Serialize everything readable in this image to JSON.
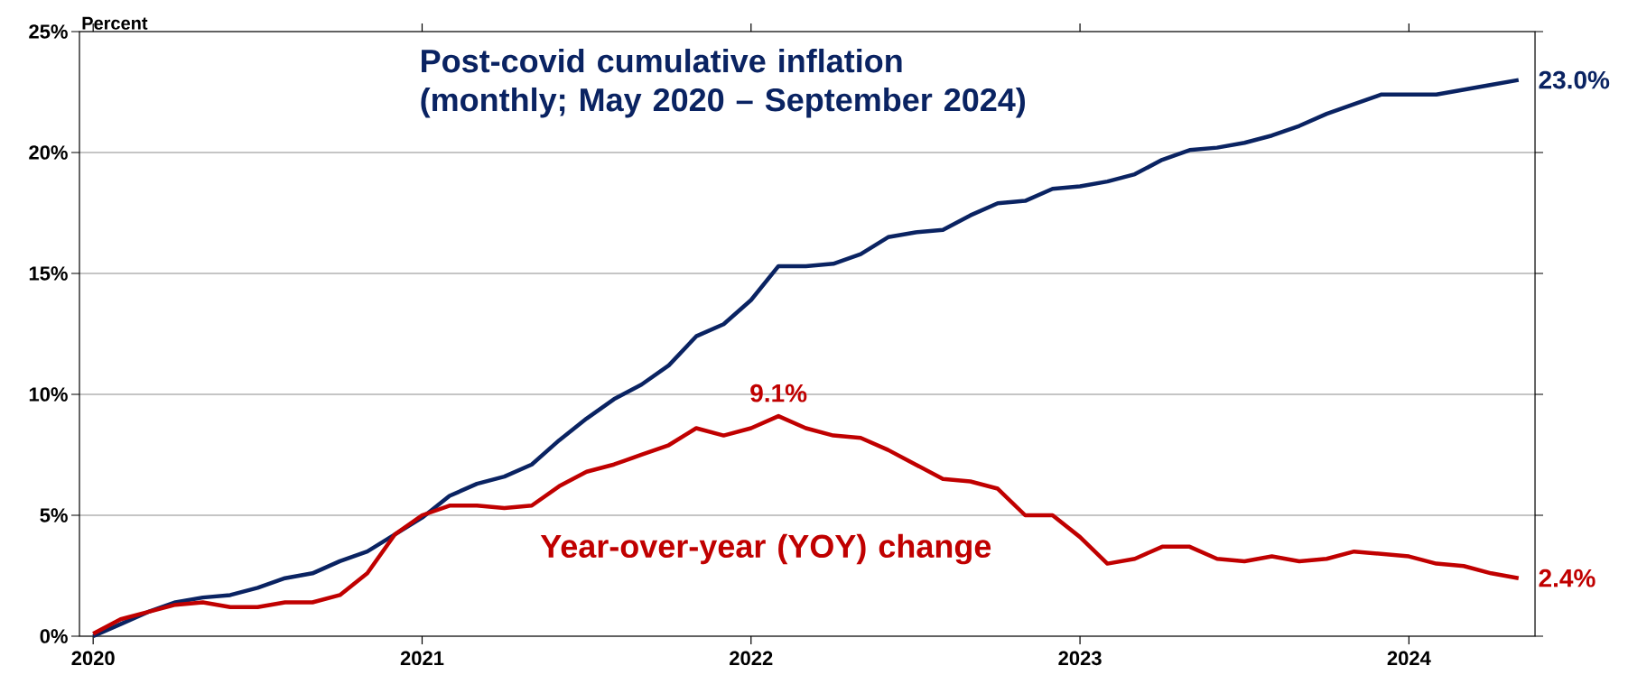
{
  "chart_data": {
    "type": "line",
    "ylabel": "Percent",
    "categories": [
      "2020",
      null,
      null,
      null,
      null,
      null,
      null,
      null,
      null,
      null,
      null,
      null,
      "2021",
      null,
      null,
      null,
      null,
      null,
      null,
      null,
      null,
      null,
      null,
      null,
      "2022",
      null,
      null,
      null,
      null,
      null,
      null,
      null,
      null,
      null,
      null,
      null,
      "2023",
      null,
      null,
      null,
      null,
      null,
      null,
      null,
      null,
      null,
      null,
      null,
      "2024",
      null,
      null,
      null,
      null
    ],
    "ylim": [
      0,
      25
    ],
    "yticks": [
      {
        "value": 0,
        "label": "0%"
      },
      {
        "value": 5,
        "label": "5%"
      },
      {
        "value": 10,
        "label": "10%"
      },
      {
        "value": 15,
        "label": "15%"
      },
      {
        "value": 20,
        "label": "20%"
      },
      {
        "value": 25,
        "label": "25%"
      }
    ],
    "grid": "y",
    "series": [
      {
        "name": "Post-covid cumulative inflation (monthly; May 2020 – September 2024)",
        "color": "#0a2362",
        "values": [
          0.0,
          0.5,
          1.0,
          1.4,
          1.6,
          1.7,
          2.0,
          2.4,
          2.6,
          3.1,
          3.5,
          4.2,
          4.9,
          5.8,
          6.3,
          6.6,
          7.1,
          8.1,
          9.0,
          9.8,
          10.4,
          11.2,
          12.4,
          12.9,
          13.9,
          15.3,
          15.3,
          15.4,
          15.8,
          16.5,
          16.7,
          16.8,
          17.4,
          17.9,
          18.0,
          18.5,
          18.6,
          18.8,
          19.1,
          19.7,
          20.1,
          20.2,
          20.4,
          20.7,
          21.1,
          21.6,
          22.0,
          22.4,
          22.4,
          22.4,
          22.6,
          22.8,
          23.0
        ]
      },
      {
        "name": "Year-over-year (YOY) change",
        "color": "#c00000",
        "values": [
          0.1,
          0.7,
          1.0,
          1.3,
          1.4,
          1.2,
          1.2,
          1.4,
          1.4,
          1.7,
          2.6,
          4.2,
          5.0,
          5.4,
          5.4,
          5.3,
          5.4,
          6.2,
          6.8,
          7.1,
          7.5,
          7.9,
          8.6,
          8.3,
          8.6,
          9.1,
          8.6,
          8.3,
          8.2,
          7.7,
          7.1,
          6.5,
          6.4,
          6.1,
          5.0,
          5.0,
          4.1,
          3.0,
          3.2,
          3.7,
          3.7,
          3.2,
          3.1,
          3.3,
          3.1,
          3.2,
          3.5,
          3.4,
          3.3,
          3.0,
          2.9,
          2.6,
          2.4
        ]
      }
    ],
    "annotations": [
      {
        "text": "9.1%",
        "y": 9.1
      },
      "23.0%",
      "2.4%"
    ]
  }
}
